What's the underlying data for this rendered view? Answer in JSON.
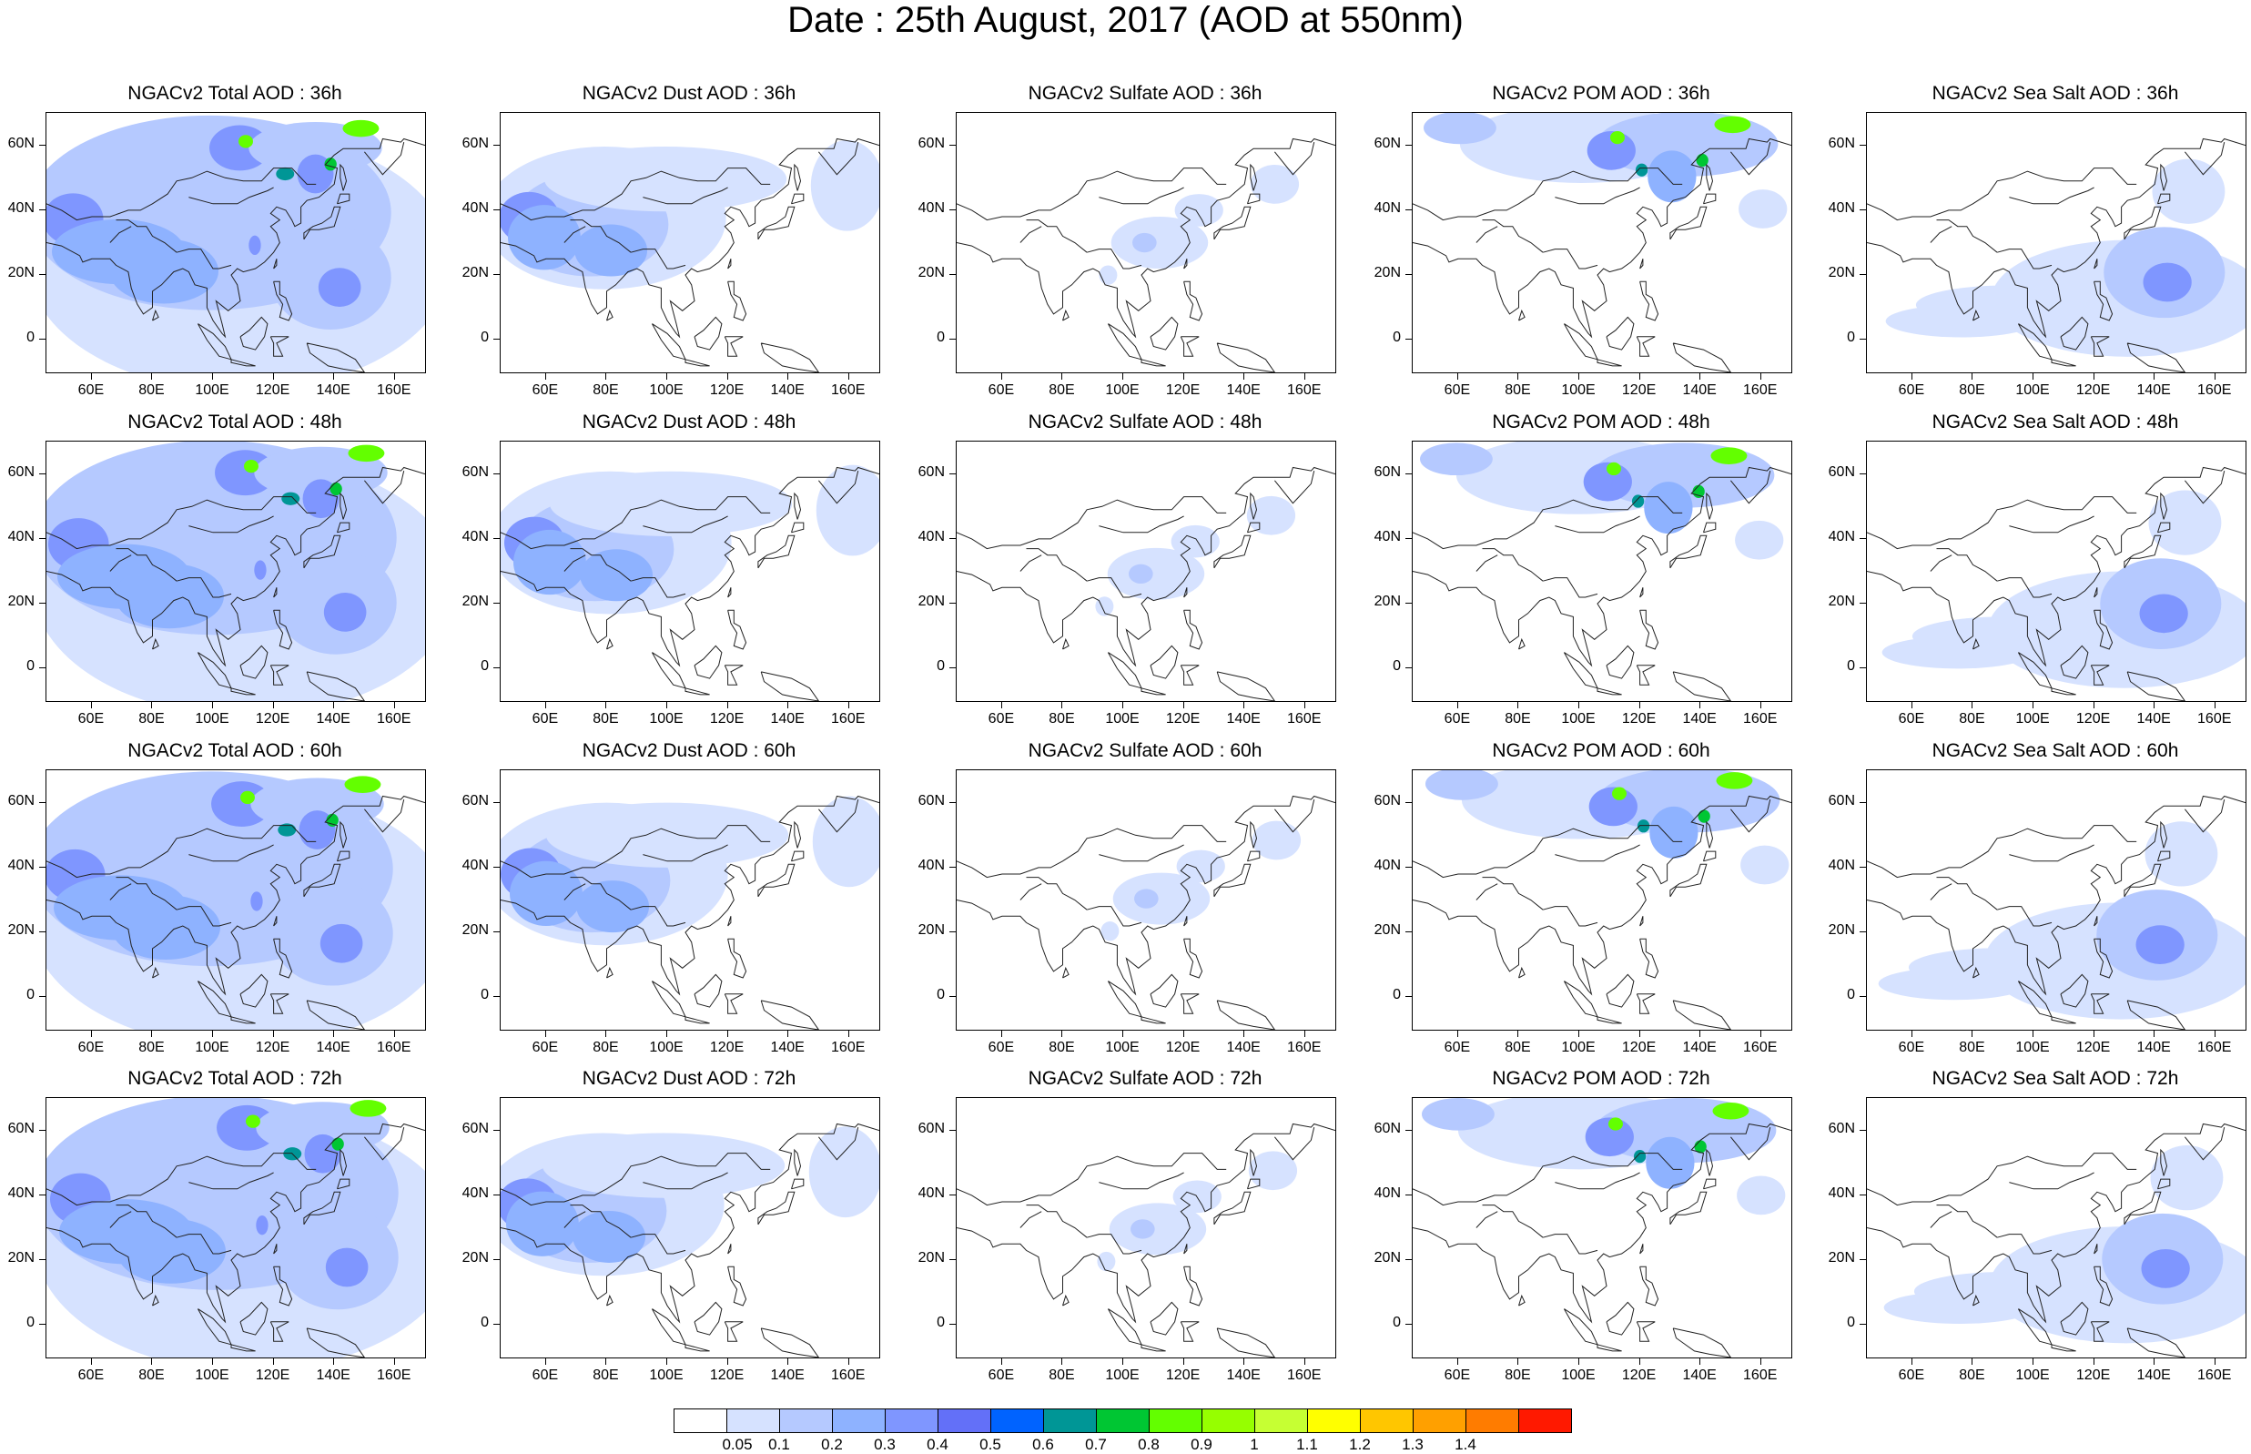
{
  "title": "Date : 25th August, 2017 (AOD at 550nm)",
  "lon_ticks": [
    "60E",
    "80E",
    "100E",
    "120E",
    "140E",
    "160E"
  ],
  "lat_ticks": [
    "60N",
    "40N",
    "20N",
    "0"
  ],
  "panels": [
    [
      "NGACv2 Total AOD : 36h",
      "NGACv2 Dust AOD : 36h",
      "NGACv2 Sulfate AOD : 36h",
      "NGACv2 POM AOD : 36h",
      "NGACv2 Sea Salt AOD : 36h"
    ],
    [
      "NGACv2 Total AOD : 48h",
      "NGACv2 Dust AOD : 48h",
      "NGACv2 Sulfate AOD : 48h",
      "NGACv2 POM AOD : 48h",
      "NGACv2 Sea Salt AOD : 48h"
    ],
    [
      "NGACv2 Total AOD : 60h",
      "NGACv2 Dust AOD : 60h",
      "NGACv2 Sulfate AOD : 60h",
      "NGACv2 POM AOD : 60h",
      "NGACv2 Sea Salt AOD : 60h"
    ],
    [
      "NGACv2 Total AOD : 72h",
      "NGACv2 Dust AOD : 72h",
      "NGACv2 Sulfate AOD : 72h",
      "NGACv2 POM AOD : 72h",
      "NGACv2 Sea Salt  AOD : 72h"
    ]
  ],
  "colorbar": {
    "labels": [
      "0.05",
      "0.1",
      "0.2",
      "0.3",
      "0.4",
      "0.5",
      "0.6",
      "0.7",
      "0.8",
      "0.9",
      "1",
      "1.1",
      "1.2",
      "1.3",
      "1.4"
    ],
    "colors": [
      "#ffffff",
      "#d6e2ff",
      "#b5c9ff",
      "#8eb2ff",
      "#7f96ff",
      "#6370f8",
      "#0063ff",
      "#009696",
      "#00c633",
      "#63ff00",
      "#96ff00",
      "#c6ff33",
      "#ffff00",
      "#ffc600",
      "#ffa000",
      "#ff7c00",
      "#ff1900"
    ]
  }
}
